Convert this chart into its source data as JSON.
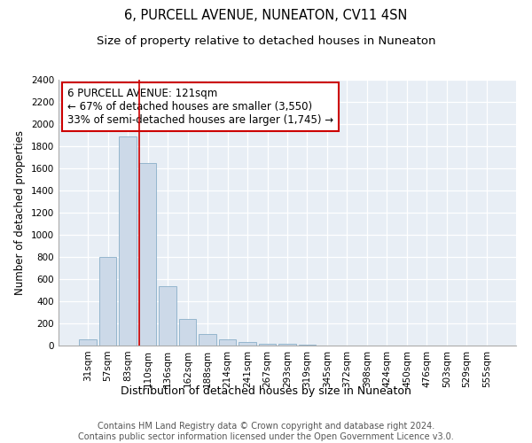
{
  "title": "6, PURCELL AVENUE, NUNEATON, CV11 4SN",
  "subtitle": "Size of property relative to detached houses in Nuneaton",
  "xlabel": "Distribution of detached houses by size in Nuneaton",
  "ylabel": "Number of detached properties",
  "bar_color": "#ccd9e8",
  "bar_edge_color": "#8aafc8",
  "categories": [
    "31sqm",
    "57sqm",
    "83sqm",
    "110sqm",
    "136sqm",
    "162sqm",
    "188sqm",
    "214sqm",
    "241sqm",
    "267sqm",
    "293sqm",
    "319sqm",
    "345sqm",
    "372sqm",
    "398sqm",
    "424sqm",
    "450sqm",
    "476sqm",
    "503sqm",
    "529sqm",
    "555sqm"
  ],
  "values": [
    55,
    800,
    1890,
    1650,
    535,
    240,
    105,
    55,
    35,
    20,
    15,
    5,
    0,
    0,
    0,
    0,
    0,
    0,
    0,
    0,
    0
  ],
  "ylim": [
    0,
    2400
  ],
  "yticks": [
    0,
    200,
    400,
    600,
    800,
    1000,
    1200,
    1400,
    1600,
    1800,
    2000,
    2200,
    2400
  ],
  "annotation_box_text": "6 PURCELL AVENUE: 121sqm\n← 67% of detached houses are smaller (3,550)\n33% of semi-detached houses are larger (1,745) →",
  "annotation_box_color": "white",
  "annotation_box_edge_color": "#cc0000",
  "vline_color": "#cc0000",
  "vline_x_index": 3,
  "background_color": "#e8eef5",
  "grid_color": "#ffffff",
  "footer_text": "Contains HM Land Registry data © Crown copyright and database right 2024.\nContains public sector information licensed under the Open Government Licence v3.0.",
  "title_fontsize": 10.5,
  "subtitle_fontsize": 9.5,
  "ylabel_fontsize": 8.5,
  "xlabel_fontsize": 9,
  "tick_fontsize": 7.5,
  "annotation_fontsize": 8.5,
  "footer_fontsize": 7
}
